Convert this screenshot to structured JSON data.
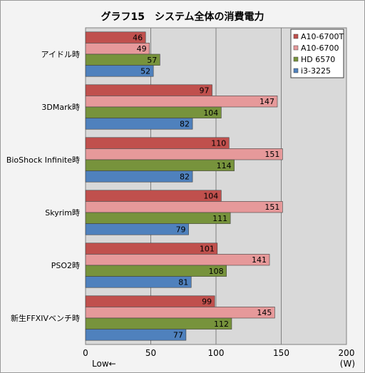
{
  "chart_data": {
    "type": "bar",
    "orientation": "horizontal",
    "title": "グラフ15　システム全体の消費電力",
    "categories": [
      "アイドル時",
      "3DMark時",
      "BioShock Infinite時",
      "Skyrim時",
      "PSO2時",
      "新生FFXIVベンチ時"
    ],
    "series": [
      {
        "name": "A10-6700T",
        "color": "#c0504d",
        "values": [
          46,
          97,
          110,
          104,
          101,
          99
        ]
      },
      {
        "name": "A10-6700",
        "color": "#e6999a",
        "values": [
          49,
          147,
          151,
          151,
          141,
          145
        ]
      },
      {
        "name": "HD 6570",
        "color": "#77933c",
        "values": [
          57,
          104,
          114,
          111,
          108,
          112
        ]
      },
      {
        "name": "i3-3225",
        "color": "#4f81bd",
        "values": [
          52,
          82,
          82,
          79,
          81,
          77
        ]
      }
    ],
    "xlim": [
      0,
      200
    ],
    "xticks": [
      0,
      50,
      100,
      150,
      200
    ],
    "xlabel_left": "Low←",
    "xlabel_right": "(W)",
    "grid": true,
    "legend_position": "top-right"
  }
}
